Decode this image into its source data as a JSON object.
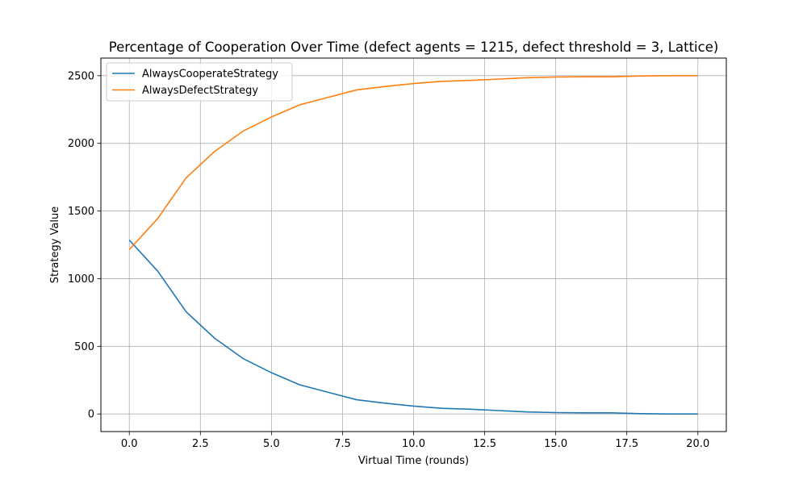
{
  "chart_data": {
    "type": "line",
    "title": "Percentage of Cooperation Over Time (defect agents = 1215, defect threshold = 3, Lattice)",
    "xlabel": "Virtual Time (rounds)",
    "ylabel": "Strategy Value",
    "xlim": [
      -1.0,
      21.0
    ],
    "ylim": [
      -130,
      2630
    ],
    "xticks": [
      0.0,
      2.5,
      5.0,
      7.5,
      10.0,
      12.5,
      15.0,
      17.5,
      20.0
    ],
    "xtick_labels": [
      "0.0",
      "2.5",
      "5.0",
      "7.5",
      "10.0",
      "12.5",
      "15.0",
      "17.5",
      "20.0"
    ],
    "yticks": [
      0,
      500,
      1000,
      1500,
      2000,
      2500
    ],
    "ytick_labels": [
      "0",
      "500",
      "1000",
      "1500",
      "2000",
      "2500"
    ],
    "grid": true,
    "legend_position": "top-left",
    "x": [
      0,
      1,
      2,
      3,
      4,
      5,
      6,
      7,
      8,
      9,
      10,
      11,
      12,
      13,
      14,
      15,
      16,
      17,
      18,
      19,
      20
    ],
    "series": [
      {
        "name": "AlwaysCooperateStrategy",
        "color": "#1f77b4",
        "values": [
          1285,
          1055,
          755,
          560,
          410,
          305,
          215,
          160,
          105,
          80,
          58,
          42,
          35,
          25,
          15,
          10,
          8,
          8,
          2,
          0,
          0
        ]
      },
      {
        "name": "AlwaysDefectStrategy",
        "color": "#ff7f0e",
        "values": [
          1215,
          1445,
          1745,
          1940,
          2090,
          2195,
          2285,
          2340,
          2395,
          2420,
          2442,
          2458,
          2465,
          2475,
          2485,
          2490,
          2492,
          2492,
          2498,
          2500,
          2500
        ]
      }
    ]
  }
}
